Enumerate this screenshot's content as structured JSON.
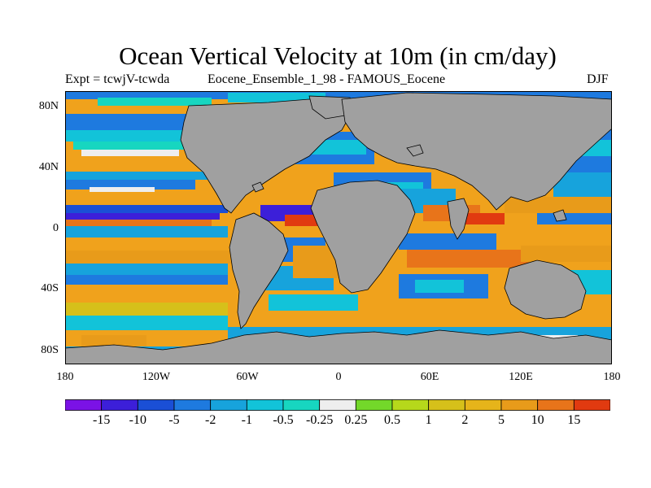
{
  "title": "Ocean Vertical Velocity at 10m (in cm/day)",
  "subtitle_left": "Expt = tcwjV-tcwda",
  "subtitle_center": "Eocene_Ensemble_1_98 - FAMOUS_Eocene",
  "subtitle_right": "DJF",
  "lat_labels": [
    "80N",
    "40N",
    "0",
    "40S",
    "80S"
  ],
  "lon_labels": [
    "180",
    "120W",
    "60W",
    "0",
    "60E",
    "120E",
    "180"
  ],
  "colorbar": {
    "labels": [
      "-15",
      "-10",
      "-5",
      "-2",
      "-1",
      "-0.5",
      "-0.25",
      "0.25",
      "0.5",
      "1",
      "2",
      "5",
      "10",
      "15"
    ],
    "colors": [
      "#7B12E6",
      "#3C1FD9",
      "#1A4FD6",
      "#1E7ADF",
      "#17A3DC",
      "#12C3D9",
      "#17D6C0",
      "#EEEEEE",
      "#73D82A",
      "#B6D81B",
      "#D6C01A",
      "#E6B41A",
      "#E89B1A",
      "#E8741A",
      "#E13A10"
    ]
  },
  "map": {
    "land_color": "#A0A0A0",
    "ocean_base_color": "#F0A21C"
  }
}
